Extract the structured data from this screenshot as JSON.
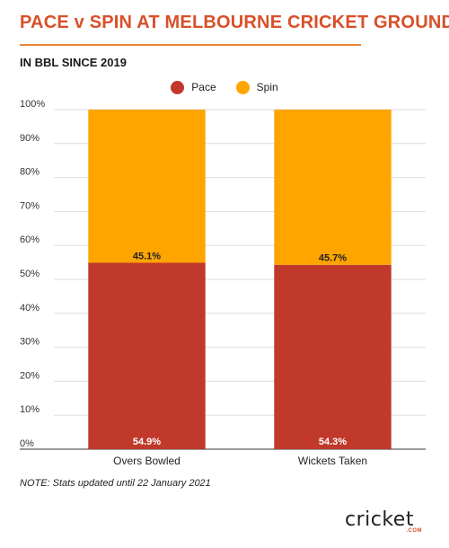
{
  "title": "PACE v SPIN AT MELBOURNE CRICKET GROUND",
  "subtitle": "IN BBL SINCE 2019",
  "note": "NOTE: Stats updated until 22 January 2021",
  "logo": {
    "text": "cricket",
    "sub": ".COM"
  },
  "colors": {
    "title": "#d8502a",
    "pace": "#c0392b",
    "spin": "#ffa500",
    "grid": "#dddddd"
  },
  "chart_data": {
    "type": "bar",
    "stacked": true,
    "categories": [
      "Overs Bowled",
      "Wickets Taken"
    ],
    "series": [
      {
        "name": "Pace",
        "values": [
          54.9,
          54.3
        ],
        "labels": [
          "54.9%",
          "54.3%"
        ],
        "color": "#c0392b"
      },
      {
        "name": "Spin",
        "values": [
          45.1,
          45.7
        ],
        "labels": [
          "45.1%",
          "45.7%"
        ],
        "color": "#ffa500"
      }
    ],
    "yticks": [
      "0%",
      "10%",
      "20%",
      "30%",
      "40%",
      "50%",
      "60%",
      "70%",
      "80%",
      "90%",
      "100%"
    ],
    "ylim": [
      0,
      100
    ],
    "grid": true,
    "legend_position": "top-center"
  }
}
